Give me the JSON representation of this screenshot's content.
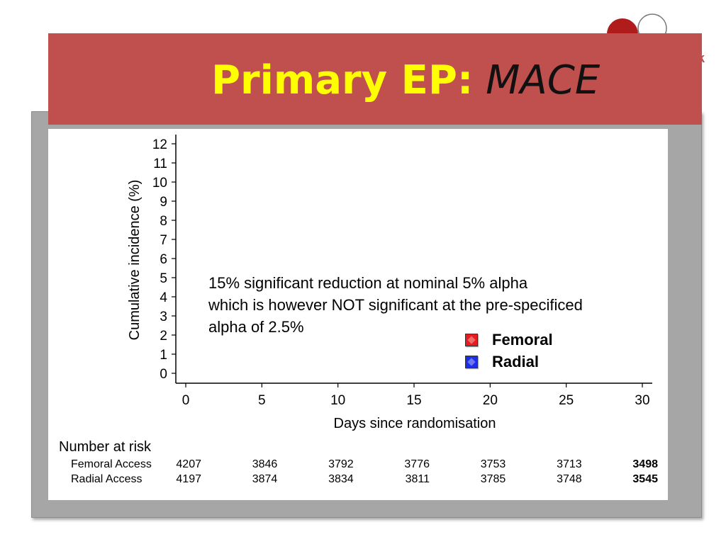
{
  "slide": {
    "title_lead": "Primary EP:",
    "title_rest": "MACE",
    "logo_letter": "k",
    "accent_color": "#c0504d",
    "title_color": "#ffff00"
  },
  "chart_data": {
    "type": "line",
    "title": "",
    "xlabel": "Days since randomisation",
    "ylabel": "Cumulative incidence (%)",
    "xlim": [
      0,
      30
    ],
    "ylim": [
      0,
      12
    ],
    "xticks": [
      0,
      5,
      10,
      15,
      20,
      25,
      30
    ],
    "yticks": [
      0,
      1,
      2,
      3,
      4,
      5,
      6,
      7,
      8,
      9,
      10,
      11,
      12
    ],
    "grid": false,
    "legend_position": "center-right",
    "series": [
      {
        "name": "Femoral",
        "color": "#e81c1c",
        "values": []
      },
      {
        "name": "Radial",
        "color": "#1c2ee8",
        "values": []
      }
    ],
    "annotation": [
      "15% significant reduction at nominal 5% alpha",
      "which is however NOT significant at the pre-specificed",
      "alpha of 2.5%"
    ],
    "risk_table": {
      "title": "Number at risk",
      "rows": [
        {
          "label": "Femoral Access",
          "values": [
            4207,
            3846,
            3792,
            3776,
            3753,
            3713,
            3498
          ]
        },
        {
          "label": "Radial Access",
          "values": [
            4197,
            3874,
            3834,
            3811,
            3785,
            3748,
            3545
          ]
        }
      ]
    }
  }
}
